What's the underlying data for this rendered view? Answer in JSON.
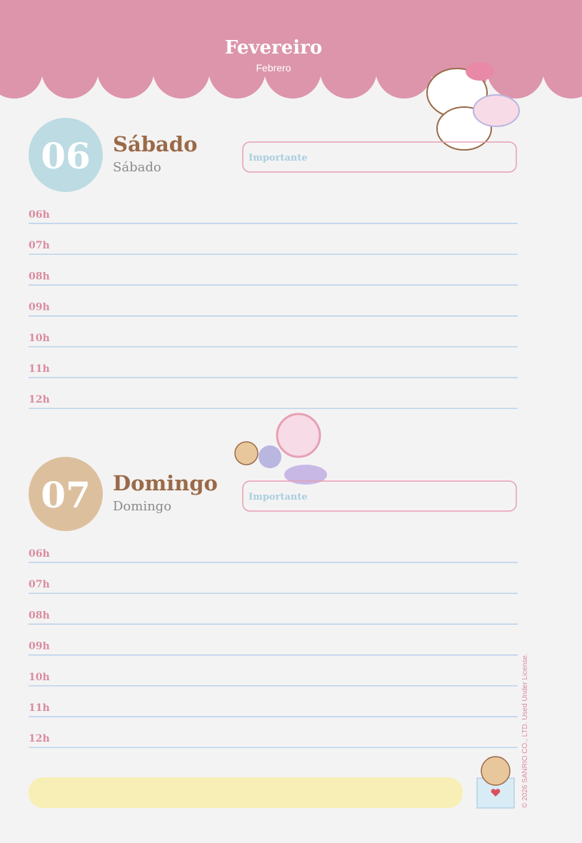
{
  "header": {
    "title": "Fevereiro",
    "subtitle": "Febrero"
  },
  "days": [
    {
      "number": "06",
      "name": "Sábado",
      "name_alt": "Sábado",
      "important": "Importante",
      "hours": [
        "06h",
        "07h",
        "08h",
        "09h",
        "10h",
        "11h",
        "12h"
      ]
    },
    {
      "number": "07",
      "name": "Domingo",
      "name_alt": "Domingo",
      "important": "Importante",
      "hours": [
        "06h",
        "07h",
        "08h",
        "09h",
        "10h",
        "11h",
        "12h"
      ]
    }
  ],
  "copyright": "© 2026 SANRIO CO., LTD. Used Under License."
}
